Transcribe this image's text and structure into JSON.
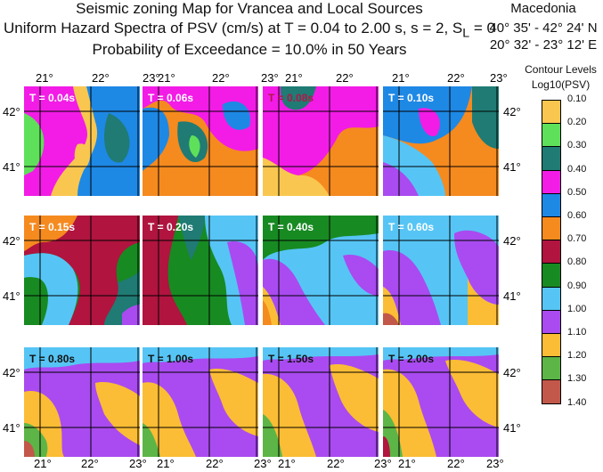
{
  "title": {
    "line1": "Seismic zoning Map for Vrancea and Local Sources",
    "line2_pre": "Uniform Hazard Spectra of PSV (cm/s) at T = 0.04 to 2.00 s,  s = 2, S",
    "line2_sub": "L",
    "line2_post": " = 0",
    "line3": "Probability of Exceedance = 10.0% in 50 Years"
  },
  "region": {
    "name": "Macedonia",
    "lat_text": "40° 35' - 42° 24' N",
    "lon_text": "20° 32' - 23° 12' E"
  },
  "axes": {
    "lon_ticks": [
      "21°",
      "22°",
      "23°"
    ],
    "lat_ticks": [
      "42°",
      "41°"
    ]
  },
  "panels": [
    {
      "label": "T = 0.04s",
      "label_color": "#ffffff"
    },
    {
      "label": "T = 0.06s",
      "label_color": "#ffffff"
    },
    {
      "label": "T = 0.08s",
      "label_color": "#b01848"
    },
    {
      "label": "T = 0.10s",
      "label_color": "#ffffff"
    },
    {
      "label": "T = 0.15s",
      "label_color": "#ffffff"
    },
    {
      "label": "T = 0.20s",
      "label_color": "#ffffff"
    },
    {
      "label": "T = 0.40s",
      "label_color": "#ffffff"
    },
    {
      "label": "T = 0.60s",
      "label_color": "#ffffff"
    },
    {
      "label": "T = 0.80s",
      "label_color": "#111111"
    },
    {
      "label": "T = 1.00s",
      "label_color": "#111111"
    },
    {
      "label": "T = 1.50s",
      "label_color": "#111111"
    },
    {
      "label": "T = 2.00s",
      "label_color": "#111111"
    }
  ],
  "legend": {
    "title1": "Contour Levels",
    "title2": "Log10(PSV)",
    "levels": [
      {
        "label": "0.10",
        "color": "#f9c74f"
      },
      {
        "label": "0.20",
        "color": "#5fe05a"
      },
      {
        "label": "0.30",
        "color": "#1f7b74"
      },
      {
        "label": "0.40",
        "color": "#f21ce6"
      },
      {
        "label": "0.50",
        "color": "#1e88e5"
      },
      {
        "label": "0.60",
        "color": "#f58a1f"
      },
      {
        "label": "0.70",
        "color": "#b0143f"
      },
      {
        "label": "0.80",
        "color": "#178a22"
      },
      {
        "label": "0.90",
        "color": "#56c5f5"
      },
      {
        "label": "1.00",
        "color": "#a94bf0"
      },
      {
        "label": "1.10",
        "color": "#fbbd35"
      },
      {
        "label": "1.20",
        "color": "#5cb546"
      },
      {
        "label": "1.30",
        "color": "#c2584a"
      },
      {
        "label": "1.40",
        "color": "#ffffff"
      }
    ]
  }
}
